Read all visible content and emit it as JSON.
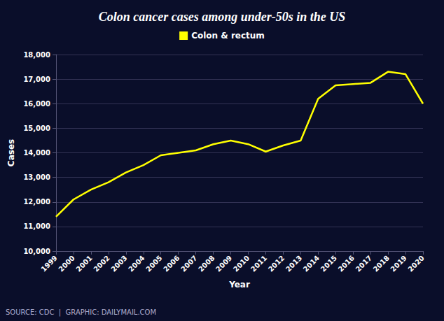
{
  "chart_data": {
    "type": "line",
    "title": "Colon cancer cases among under-50s in the US",
    "xlabel": "Year",
    "ylabel": "Cases",
    "annotation": "SOURCE: CDC  |  GRAPHIC: DAILYMAIL.COM",
    "series": [
      {
        "name": "Colon & rectum",
        "color": "#FFFF00",
        "values": [
          11400,
          12100,
          12500,
          12800,
          13200,
          13500,
          13900,
          14000,
          14100,
          14350,
          14500,
          14350,
          14050,
          14300,
          14500,
          16200,
          16750,
          16800,
          16850,
          17300,
          17200,
          16000
        ]
      }
    ],
    "x": [
      1999,
      2000,
      2001,
      2002,
      2003,
      2004,
      2005,
      2006,
      2007,
      2008,
      2009,
      2010,
      2011,
      2012,
      2013,
      2014,
      2015,
      2016,
      2017,
      2018,
      2019,
      2020
    ],
    "xlim": [
      1999,
      2020
    ],
    "xticks": [
      1999,
      2000,
      2001,
      2002,
      2003,
      2004,
      2005,
      2006,
      2007,
      2008,
      2009,
      2010,
      2011,
      2012,
      2013,
      2014,
      2015,
      2016,
      2017,
      2018,
      2019,
      2020
    ],
    "ylim": [
      10000,
      18000
    ],
    "yticks": [
      {
        "value": 10000,
        "label": "10,000"
      },
      {
        "value": 11000,
        "label": "11,000"
      },
      {
        "value": 12000,
        "label": "12,000"
      },
      {
        "value": 13000,
        "label": "13,000"
      },
      {
        "value": 14000,
        "label": "14,000"
      },
      {
        "value": 15000,
        "label": "15,000"
      },
      {
        "value": 16000,
        "label": "16,000"
      },
      {
        "value": 17000,
        "label": "17,000"
      },
      {
        "value": 18000,
        "label": "18,000"
      }
    ],
    "grid": true,
    "legend": "top"
  }
}
